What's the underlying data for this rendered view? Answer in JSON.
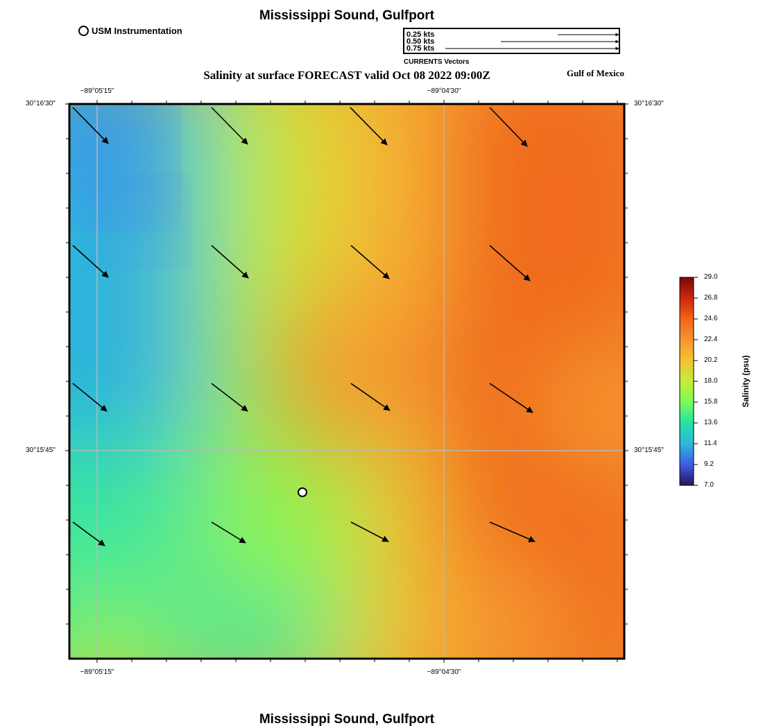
{
  "title": "Mississippi Sound, Gulfport",
  "subtitle": "Salinity at surface FORECAST valid Oct 08 2022 09:00Z",
  "region_label": "Gulf of Mexico",
  "legend": {
    "marker_label": "USM Instrumentation",
    "vector_scale": [
      {
        "label": "0.25 kts",
        "speed": 0.25
      },
      {
        "label": "0.50 kts",
        "speed": 0.5
      },
      {
        "label": "0.75 kts",
        "speed": 0.75
      }
    ],
    "vector_caption": "CURRENTS Vectors"
  },
  "axes": {
    "top_ticks": [
      {
        "label": "−89°05'15\""
      },
      {
        "label": "−89°04'30\""
      }
    ],
    "bottom_ticks": [
      {
        "label": "−89°05'15\""
      },
      {
        "label": "−89°04'30\""
      }
    ],
    "left_ticks": [
      {
        "label": "30°16'30\""
      },
      {
        "label": "30°15'45\""
      }
    ],
    "right_ticks": [
      {
        "label": "30°16'30\""
      },
      {
        "label": "30°15'45\""
      }
    ]
  },
  "colorbar": {
    "title": "Salinity (psu)",
    "min": 7.0,
    "max": 29.0,
    "labels": [
      "29.0",
      "26.8",
      "24.6",
      "22.4",
      "20.2",
      "18.0",
      "15.8",
      "13.6",
      "11.4",
      "9.2",
      "7.0"
    ],
    "colors": [
      "#2a1458",
      "#3e5ce6",
      "#2fb7d9",
      "#22e3a2",
      "#7dfa58",
      "#c5ec38",
      "#f4c233",
      "#f89330",
      "#f06518",
      "#c9290a",
      "#7e0808"
    ]
  },
  "station": {
    "name": "USM Instrumentation"
  }
}
